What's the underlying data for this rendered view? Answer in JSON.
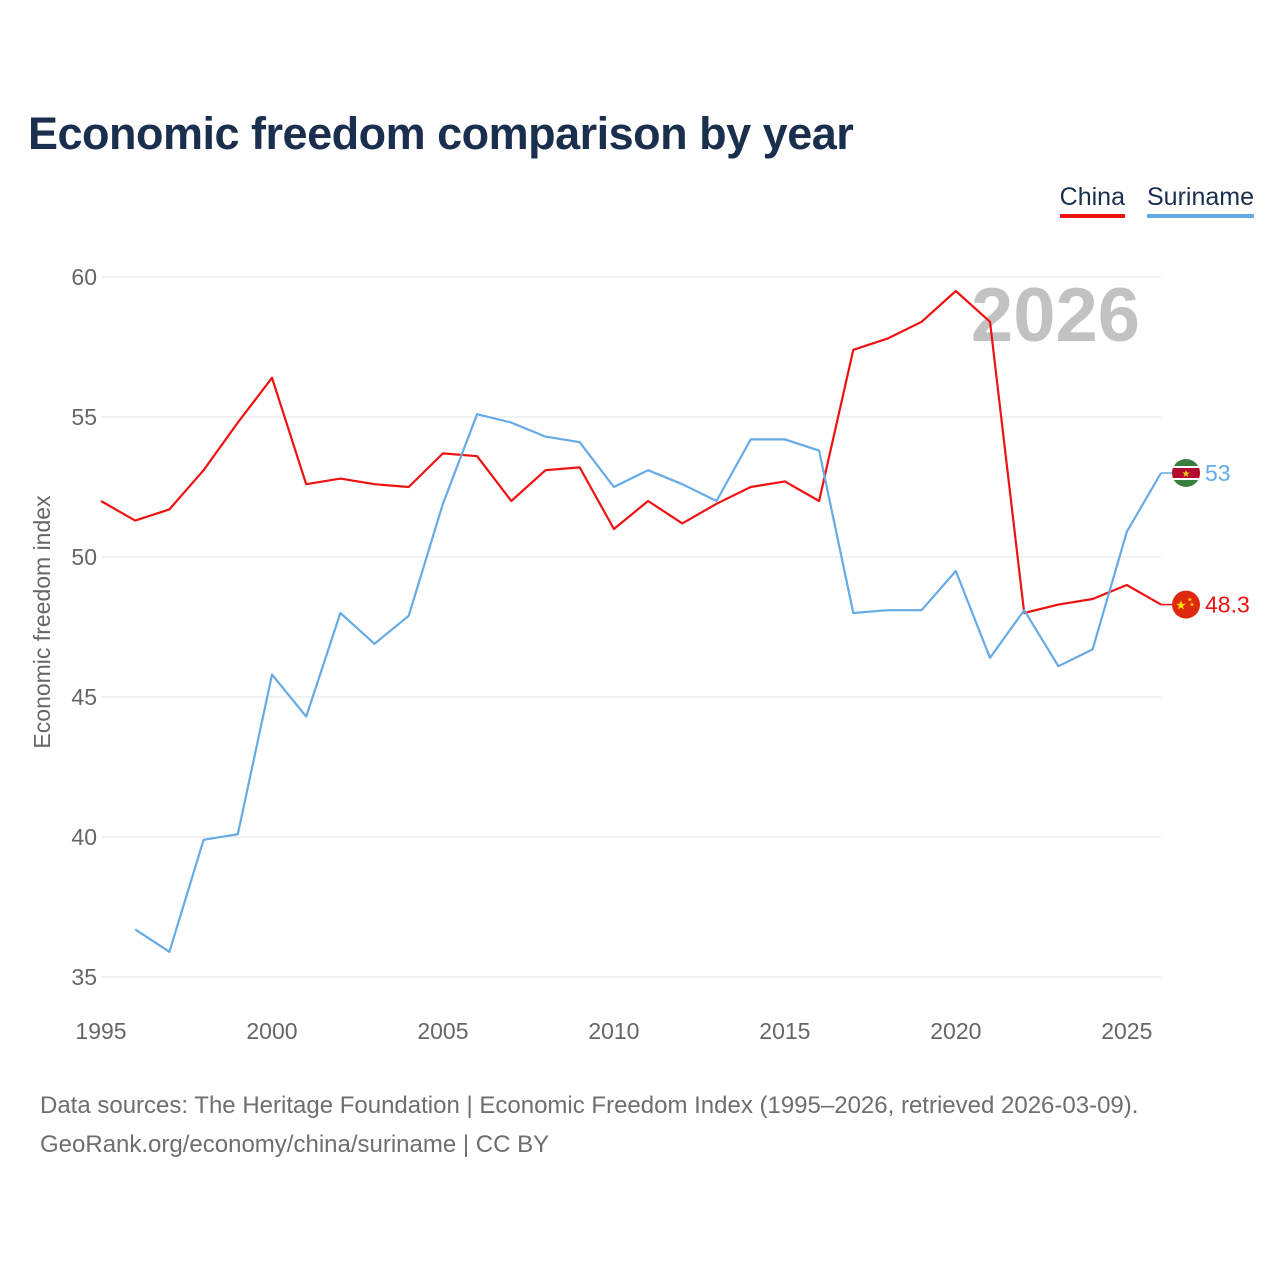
{
  "chart_data": {
    "type": "line",
    "title": "Economic freedom comparison by year",
    "ylabel": "Economic freedom index",
    "xlabel": "",
    "xlim": [
      1995,
      2026
    ],
    "ylim": [
      35,
      60
    ],
    "x_ticks": [
      "1995",
      "2000",
      "2005",
      "2010",
      "2015",
      "2020",
      "2025"
    ],
    "y_ticks": [
      "35",
      "40",
      "45",
      "50",
      "55",
      "60"
    ],
    "year_watermark": "2026",
    "grid": true,
    "legend_position": "top-right",
    "series": [
      {
        "name": "China",
        "color": "#ee1111",
        "end_label": "48.3",
        "x": [
          1995,
          1996,
          1997,
          1998,
          1999,
          2000,
          2001,
          2002,
          2003,
          2004,
          2005,
          2006,
          2007,
          2008,
          2009,
          2010,
          2011,
          2012,
          2013,
          2014,
          2015,
          2016,
          2017,
          2018,
          2019,
          2020,
          2021,
          2022,
          2023,
          2024,
          2025,
          2026
        ],
        "values": [
          52.0,
          51.3,
          51.7,
          53.1,
          54.8,
          56.4,
          52.6,
          52.8,
          52.6,
          52.5,
          53.7,
          53.6,
          52.0,
          53.1,
          53.2,
          51.0,
          52.0,
          51.2,
          51.9,
          52.5,
          52.7,
          52.0,
          57.4,
          57.8,
          58.4,
          59.5,
          58.4,
          48.0,
          48.3,
          48.5,
          49.0,
          48.3
        ]
      },
      {
        "name": "Suriname",
        "color": "#66aae6",
        "end_label": "53",
        "x": [
          1996,
          1997,
          1998,
          1999,
          2000,
          2001,
          2002,
          2003,
          2004,
          2005,
          2006,
          2007,
          2008,
          2009,
          2010,
          2011,
          2012,
          2013,
          2014,
          2015,
          2016,
          2017,
          2018,
          2019,
          2020,
          2021,
          2022,
          2023,
          2024,
          2025,
          2026
        ],
        "values": [
          36.7,
          35.9,
          39.9,
          40.1,
          45.8,
          44.3,
          48.0,
          46.9,
          47.9,
          51.9,
          55.1,
          54.8,
          54.3,
          54.1,
          52.5,
          53.1,
          52.6,
          52.0,
          54.2,
          54.2,
          53.8,
          48.0,
          48.1,
          48.1,
          49.5,
          46.4,
          48.1,
          46.1,
          46.7,
          50.9,
          53.0
        ]
      }
    ]
  },
  "footer": {
    "line1": "Data sources: The Heritage Foundation | Economic Freedom Index (1995–2026, retrieved 2026-03-09).",
    "line2": "GeoRank.org/economy/china/suriname | CC BY"
  }
}
